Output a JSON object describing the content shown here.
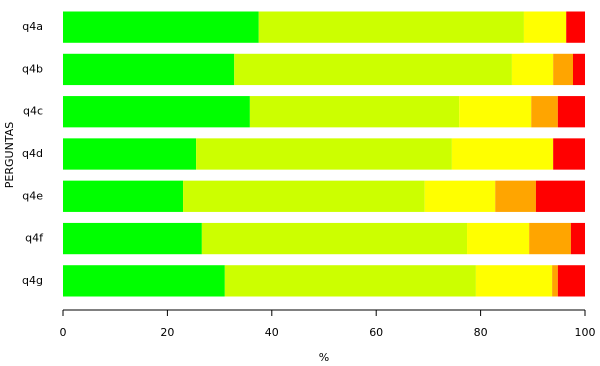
{
  "chart_data": {
    "type": "stacked-bar-horizontal",
    "x_label": "%",
    "y_label": "PERGUNTAS",
    "categories": [
      "q4a",
      "q4b",
      "q4c",
      "q4d",
      "q4e",
      "q4f",
      "q4g"
    ],
    "series": [
      {
        "color": "#00ff00",
        "values": [
          37.5,
          32.8,
          35.8,
          25.5,
          23.0,
          26.6,
          31.0
        ]
      },
      {
        "color": "#ccff00",
        "values": [
          50.8,
          53.2,
          40.1,
          49.0,
          46.3,
          50.8,
          48.1
        ]
      },
      {
        "color": "#ffff00",
        "values": [
          8.1,
          7.9,
          13.8,
          19.4,
          13.5,
          11.9,
          14.6
        ]
      },
      {
        "color": "#ffa500",
        "values": [
          0,
          3.8,
          5.1,
          0,
          7.8,
          8.0,
          1.1
        ]
      },
      {
        "color": "#ff0000",
        "values": [
          3.6,
          2.3,
          5.2,
          6.1,
          9.4,
          2.7,
          5.2
        ]
      }
    ],
    "xlim": [
      0,
      100
    ],
    "xticks": [
      0,
      20,
      40,
      60,
      80,
      100
    ],
    "grid": false
  }
}
